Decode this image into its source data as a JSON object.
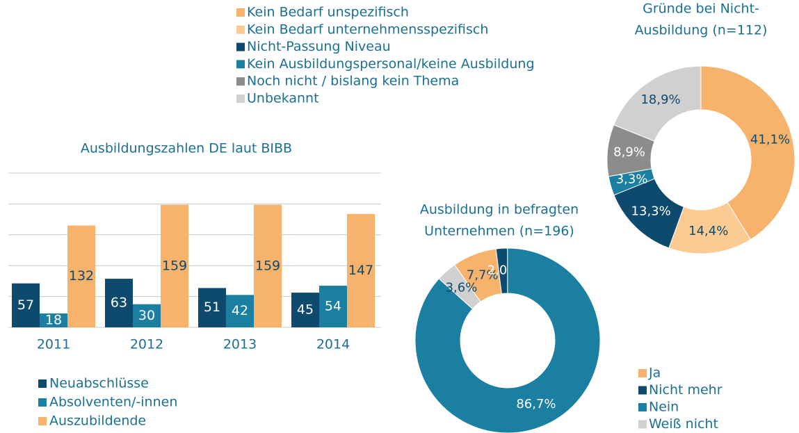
{
  "chart_data": [
    {
      "type": "bar",
      "title": "Ausbildungszahlen DE laut BIBB",
      "categories": [
        "2011",
        "2012",
        "2013",
        "2014"
      ],
      "series": [
        {
          "name": "Neuabschlüsse",
          "color": "#0e4a6e",
          "values": [
            57,
            63,
            51,
            45
          ]
        },
        {
          "name": "Absolventen/-innen",
          "color": "#1a7fa0",
          "values": [
            18,
            30,
            42,
            54
          ]
        },
        {
          "name": "Auszubildende",
          "color": "#f7b26b",
          "values": [
            132,
            159,
            159,
            147
          ]
        }
      ],
      "ylim": [
        0,
        200
      ],
      "yticks": [
        0,
        40,
        80,
        120,
        160,
        200
      ],
      "grid": true,
      "legend": "bottom"
    },
    {
      "type": "donut",
      "title": [
        "Gründe bei Nicht-",
        "Ausbildung (n=112)"
      ],
      "categories": [
        "Kein Bedarf unspezifisch",
        "Kein Bedarf unternehmensspezifisch",
        "Nicht-Passung Niveau",
        "Kein Ausbildungspersonal/keine Ausbildung",
        "Noch nicht / bislang kein Thema",
        "Unbekannt"
      ],
      "values": [
        41.1,
        14.4,
        13.3,
        3.3,
        8.9,
        18.9
      ],
      "value_labels": [
        "41,1%",
        "14,4%",
        "13,3%",
        "3,3%",
        "8,9%",
        "18,9%"
      ],
      "colors": [
        "#f7b26b",
        "#fbcb94",
        "#0e4a6e",
        "#1a7fa0",
        "#8c8c8c",
        "#d0d0d0"
      ],
      "legend": "top"
    },
    {
      "type": "donut",
      "title": [
        "Ausbildung in befragten",
        "Unternehmen (n=196)"
      ],
      "categories": [
        "Ja",
        "Nicht mehr",
        "Nein",
        "Weiß nicht"
      ],
      "values": [
        7.7,
        2.0,
        86.7,
        3.6
      ],
      "value_labels": [
        "7,7%",
        "2,0%",
        "86,7%",
        "3,6%"
      ],
      "colors": [
        "#f7b26b",
        "#0e4a6e",
        "#1a7fa0",
        "#d0d0d0"
      ],
      "legend": "right"
    }
  ]
}
